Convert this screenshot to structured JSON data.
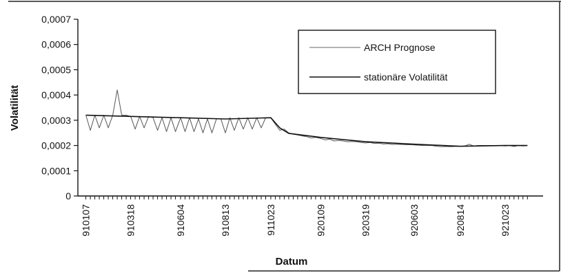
{
  "chart_data": {
    "type": "line",
    "xlabel": "Datum",
    "ylabel": "Volatilität",
    "ylim": [
      0,
      0.0007
    ],
    "yticks": [
      "0",
      "0,0001",
      "0,0002",
      "0,0003",
      "0,0004",
      "0,0005",
      "0,0006",
      "0,0007"
    ],
    "yvalues": [
      0,
      0.0001,
      0.0002,
      0.0003,
      0.0004,
      0.0005,
      0.0006,
      0.0007
    ],
    "xticks": [
      "910107",
      "910318",
      "910604",
      "910813",
      "911023",
      "920109",
      "920319",
      "920603",
      "920814",
      "921023"
    ],
    "legend": {
      "position": "top-right"
    },
    "series": [
      {
        "name": "ARCH Prognose",
        "x": [
          "910107",
          "910114",
          "910121",
          "910128",
          "910204",
          "910211",
          "910218",
          "910225",
          "910304",
          "910311",
          "910318",
          "910325",
          "910401",
          "910408",
          "910415",
          "910422",
          "910429",
          "910506",
          "910513",
          "910520",
          "910527",
          "910604",
          "910611",
          "910618",
          "910625",
          "910702",
          "910709",
          "910716",
          "910723",
          "910730",
          "910806",
          "910813",
          "910820",
          "910827",
          "910903",
          "910910",
          "910917",
          "910924",
          "911001",
          "911008",
          "911015",
          "911023",
          "911030",
          "911106",
          "911113",
          "911120",
          "911127",
          "911204",
          "911211",
          "911218",
          "911225",
          "920101",
          "920109",
          "920116",
          "920123",
          "920130",
          "920206",
          "920213",
          "920220",
          "920227",
          "920305",
          "920312",
          "920319",
          "920326",
          "920402",
          "920409",
          "920416",
          "920423",
          "920430",
          "920507",
          "920514",
          "920521",
          "920528",
          "920603",
          "920610",
          "920617",
          "920624",
          "920701",
          "920708",
          "920715",
          "920722",
          "920729",
          "920806",
          "920814",
          "920821",
          "920828",
          "920904",
          "920911",
          "920918",
          "920925",
          "921002",
          "921009",
          "921016",
          "921023",
          "921030",
          "921106",
          "921113",
          "921120",
          "921127"
        ],
        "values": [
          0.00032,
          0.00026,
          0.00032,
          0.00027,
          0.00032,
          0.00027,
          0.00032,
          0.00042,
          0.00032,
          0.00032,
          0.000315,
          0.000265,
          0.000315,
          0.00027,
          0.000315,
          0.00031,
          0.00026,
          0.00031,
          0.000255,
          0.00031,
          0.000255,
          0.00031,
          0.000255,
          0.00031,
          0.000255,
          0.000305,
          0.00025,
          0.000305,
          0.00025,
          0.000305,
          0.000305,
          0.00025,
          0.00031,
          0.00026,
          0.00031,
          0.000265,
          0.00031,
          0.000265,
          0.00031,
          0.00027,
          0.00031,
          0.00031,
          0.000285,
          0.00026,
          0.000265,
          0.00025,
          0.000245,
          0.000242,
          0.000238,
          0.000235,
          0.00023,
          0.000232,
          0.000228,
          0.000222,
          0.000225,
          0.000218,
          0.00022,
          0.000218,
          0.000215,
          0.000216,
          0.000215,
          0.000212,
          0.00021,
          0.000212,
          0.000208,
          0.000209,
          0.000206,
          0.000207,
          0.000204,
          0.000205,
          0.000204,
          0.000203,
          0.000203,
          0.000202,
          0.000201,
          0.0002,
          0.0002,
          0.0002,
          0.000197,
          0.000195,
          0.000196,
          0.000195,
          0.000196,
          0.000197,
          0.000198,
          0.000205,
          0.000198,
          0.0002,
          0.0002,
          0.0002,
          0.0002,
          0.0002,
          0.0002,
          0.000198,
          0.0002,
          0.000196,
          0.0002,
          0.000198,
          0.0002
        ]
      },
      {
        "name": "stationäre Volatilität",
        "x": [
          "910107",
          "910318",
          "910604",
          "910813",
          "911023",
          "911030",
          "911106",
          "911120",
          "920109",
          "920319",
          "920603",
          "920814",
          "921023",
          "921127"
        ],
        "values": [
          0.00032,
          0.000315,
          0.00031,
          0.000305,
          0.00031,
          0.00029,
          0.00027,
          0.000248,
          0.000232,
          0.000215,
          0.000205,
          0.000197,
          0.0002,
          0.0002
        ]
      }
    ]
  }
}
